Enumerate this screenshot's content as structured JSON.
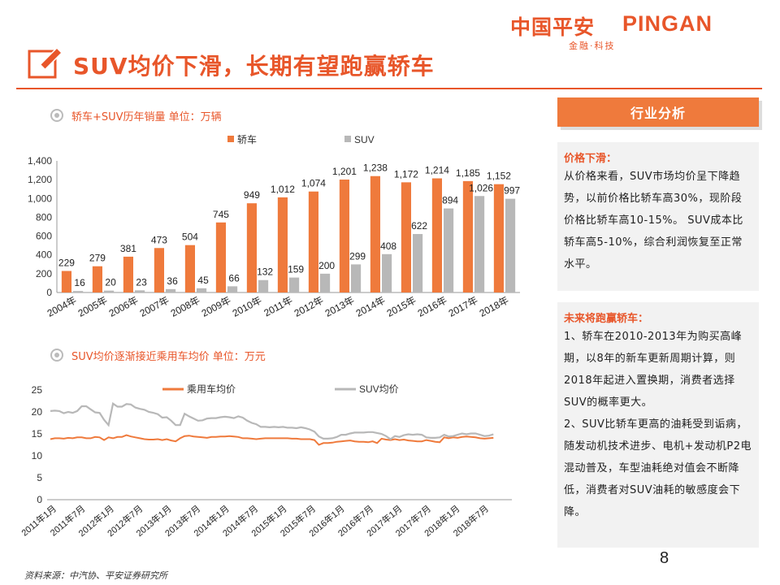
{
  "brand": {
    "name_cn": "中国平安",
    "name_en": "PINGAN",
    "tagline": "金融·科技"
  },
  "slide": {
    "title": "SUV均价下滑，长期有望跑赢轿车",
    "page_number": "8",
    "source": "资料来源：中汽协、平安证券研究所"
  },
  "section1": {
    "title": "轿车+SUV历年销量 单位：万辆"
  },
  "section2": {
    "title": "SUV均价逐渐接近乘用车均价 单位：万元"
  },
  "panel": {
    "header": "行业分析",
    "box1_heading": "价格下滑：",
    "box1_text": "从价格来看，SUV市场均价呈下降趋势，以前价格比轿车高30%，现阶段价格比轿车高10-15%。 SUV成本比轿车高5-10%，综合利润恢复至正常水平。",
    "box2_heading": "未来将跑赢轿车：",
    "box2_p1": "1、轿车在2010-2013年为购买高峰期，以8年的新车更新周期计算，则2018年起进入置换期，消费者选择SUV的概率更大。",
    "box2_p2": "2、SUV比轿车更高的油耗受到诟病，随发动机技术进步、电机+发动机P2电混动普及，车型油耗绝对值会不断降低，消费者对SUV油耗的敏感度会下降。"
  },
  "colors": {
    "accent": "#e8562a",
    "sedan": "#ef7a3c",
    "suv": "#b8b8b8",
    "panel_bg": "#f2f2f2"
  },
  "chart_data": [
    {
      "type": "bar",
      "categories": [
        "2004年",
        "2005年",
        "2006年",
        "2007年",
        "2008年",
        "2009年",
        "2010年",
        "2011年",
        "2012年",
        "2013年",
        "2014年",
        "2015年",
        "2016年",
        "2017年",
        "2018年"
      ],
      "series": [
        {
          "name": "轿车",
          "values": [
            229,
            279,
            381,
            473,
            504,
            745,
            949,
            1012,
            1074,
            1201,
            1238,
            1172,
            1214,
            1185,
            1152
          ]
        },
        {
          "name": "SUV",
          "values": [
            16,
            20,
            23,
            36,
            45,
            66,
            132,
            159,
            200,
            299,
            408,
            622,
            894,
            1026,
            997
          ]
        }
      ],
      "y_ticks": [
        "0",
        "200",
        "400",
        "600",
        "800",
        "1,000",
        "1,200",
        "1,400"
      ],
      "ylim": [
        0,
        1400
      ],
      "legend": "top"
    },
    {
      "type": "line",
      "x_tick_labels": [
        "2011年1月",
        "2011年7月",
        "2012年1月",
        "2012年7月",
        "2013年1月",
        "2013年7月",
        "2014年1月",
        "2014年7月",
        "2015年1月",
        "2015年7月",
        "2016年1月",
        "2016年7月",
        "2017年1月",
        "2017年7月",
        "2018年1月",
        "2018年7月"
      ],
      "series": [
        {
          "name": "乘用车均价",
          "values": [
            13.8,
            14.0,
            14.0,
            13.9,
            14.1,
            14.0,
            14.2,
            14.2,
            14.0,
            14.0,
            14.3,
            14.2,
            13.6,
            14.2,
            14.0,
            14.3,
            14.3,
            14.7,
            14.4,
            14.2,
            14.0,
            13.8,
            13.7,
            13.7,
            13.8,
            13.6,
            13.8,
            13.5,
            13.3,
            14.0,
            14.5,
            14.6,
            14.4,
            14.3,
            14.2,
            14.1,
            14.3,
            14.3,
            14.4,
            14.4,
            14.5,
            14.4,
            14.3,
            14.0,
            14.0,
            13.9,
            13.8,
            13.9,
            14.0,
            14.0,
            14.0,
            14.0,
            14.0,
            14.0,
            13.9,
            13.9,
            13.8,
            13.8,
            13.8,
            13.6,
            12.5,
            12.9,
            12.9,
            13.0,
            13.2,
            13.3,
            13.4,
            13.5,
            13.3,
            13.2,
            13.2,
            13.1,
            13.3,
            12.9,
            13.9,
            13.7,
            13.6,
            13.8,
            13.6,
            13.7,
            13.5,
            13.4,
            13.3,
            13.3,
            13.6,
            13.4,
            13.2,
            13.1,
            14.2,
            14.0,
            14.2,
            14.1,
            14.3,
            14.4,
            14.3,
            14.2,
            14.0,
            13.9,
            14.0,
            14.1
          ]
        },
        {
          "name": "SUV均价",
          "values": [
            20.2,
            20.3,
            20.2,
            19.7,
            20.0,
            19.8,
            20.2,
            21.3,
            21.3,
            20.6,
            19.9,
            19.8,
            18.2,
            17.0,
            21.9,
            21.2,
            21.2,
            21.8,
            21.7,
            21.0,
            20.7,
            20.5,
            20.0,
            19.8,
            19.5,
            18.7,
            18.8,
            18.0,
            17.0,
            17.0,
            19.6,
            19.0,
            18.5,
            18.0,
            18.1,
            18.5,
            18.6,
            18.6,
            18.8,
            18.9,
            18.8,
            18.6,
            19.0,
            18.7,
            18.0,
            17.5,
            17.2,
            16.6,
            16.6,
            16.5,
            16.6,
            16.5,
            16.6,
            16.4,
            16.4,
            16.3,
            16.5,
            16.3,
            16.0,
            15.5,
            14.4,
            13.9,
            13.9,
            14.0,
            14.3,
            14.8,
            14.8,
            15.1,
            15.3,
            15.3,
            15.3,
            15.4,
            15.4,
            15.2,
            15.0,
            14.5,
            13.8,
            14.5,
            14.3,
            14.7,
            14.9,
            14.8,
            14.9,
            14.8,
            14.2,
            14.1,
            14.1,
            14.2,
            14.8,
            14.4,
            14.5,
            14.8,
            15.1,
            14.9,
            15.1,
            15.1,
            14.8,
            14.5,
            14.6,
            14.9
          ]
        }
      ],
      "y_ticks": [
        "0",
        "5",
        "10",
        "15",
        "20",
        "25"
      ],
      "ylim": [
        0,
        25
      ],
      "legend": "top"
    }
  ]
}
